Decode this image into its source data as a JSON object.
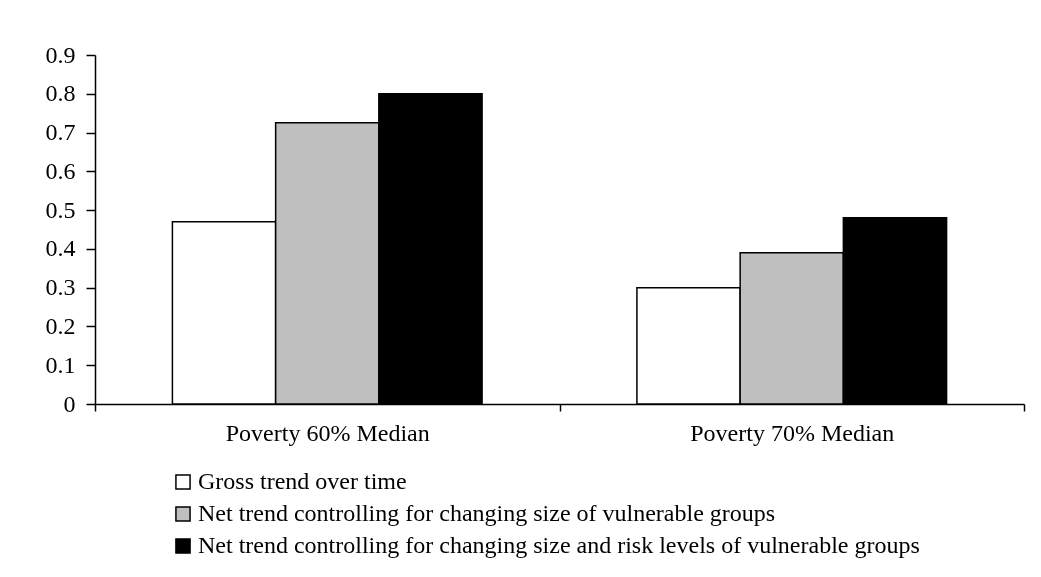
{
  "chart_data": {
    "type": "bar",
    "categories": [
      "Poverty 60% Median",
      "Poverty 70% Median"
    ],
    "series": [
      {
        "name": "Gross trend over time",
        "color": "#ffffff",
        "values": [
          0.47,
          0.3
        ]
      },
      {
        "name": "Net trend controlling for changing size of vulnerable groups",
        "color": "#bfbfbf",
        "values": [
          0.725,
          0.39
        ]
      },
      {
        "name": "Net trend controlling for changing size  and risk levels of vulnerable groups",
        "color": "#000000",
        "values": [
          0.8,
          0.48
        ]
      }
    ],
    "ylim": [
      0,
      0.9
    ],
    "yticks": [
      0,
      0.1,
      0.2,
      0.3,
      0.4,
      0.5,
      0.6,
      0.7,
      0.8,
      0.9
    ],
    "grid": false,
    "legend": "bottom"
  }
}
